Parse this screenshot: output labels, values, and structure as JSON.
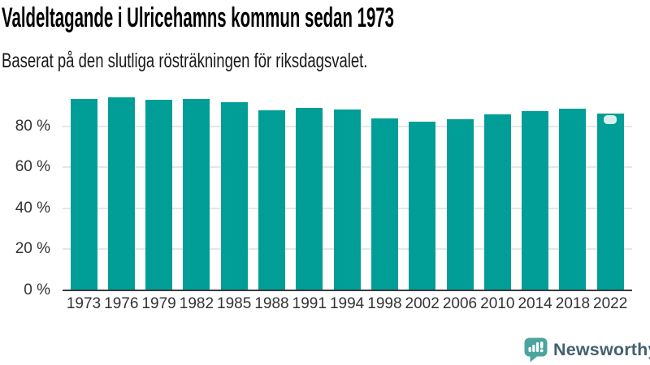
{
  "header": {
    "title": "Valdeltagande i Ulricehamns kommun sedan 1973",
    "subtitle": "Baserat på den slutliga rösträkningen för riksdagsvalet."
  },
  "footer": {
    "brand": "Newsworthy",
    "logo_icon": "newsworthy-speech-bubble-bar-chart-icon"
  },
  "colors": {
    "bar": "#009E96",
    "latest_bar_cap": "#D8EFEC",
    "gridline": "#E3E7E7",
    "axis_line": "#3A3A3A",
    "tick_label": "#333333",
    "title": "#000000",
    "subtitle": "#1A1A1A",
    "logo_icon": "#4BA59F",
    "logo_text": "#43616F",
    "logo_glyph": "#FFFFFF",
    "background": "#FFFFFF"
  },
  "chart_data": {
    "type": "bar",
    "title": "Valdeltagande i Ulricehamns kommun sedan 1973",
    "subtitle": "Baserat på den slutliga rösträkningen för riksdagsvalet.",
    "unit": "%",
    "categories": [
      "1973",
      "1976",
      "1979",
      "1982",
      "1985",
      "1988",
      "1991",
      "1994",
      "1998",
      "2002",
      "2006",
      "2010",
      "2014",
      "2018",
      "2022"
    ],
    "values": [
      93.4,
      94.0,
      93.0,
      93.4,
      91.8,
      87.9,
      89.0,
      88.2,
      83.6,
      82.2,
      83.2,
      85.8,
      87.3,
      88.6,
      86.3
    ],
    "ylim": [
      0,
      100
    ],
    "yticks": [
      {
        "value": 0,
        "label": "0 %"
      },
      {
        "value": 20,
        "label": "20 %"
      },
      {
        "value": 40,
        "label": "40 %"
      },
      {
        "value": 60,
        "label": "60 %"
      },
      {
        "value": 80,
        "label": "80 %"
      }
    ],
    "grid": "horizontal",
    "legend": "none",
    "highlight_latest_bar": true
  }
}
